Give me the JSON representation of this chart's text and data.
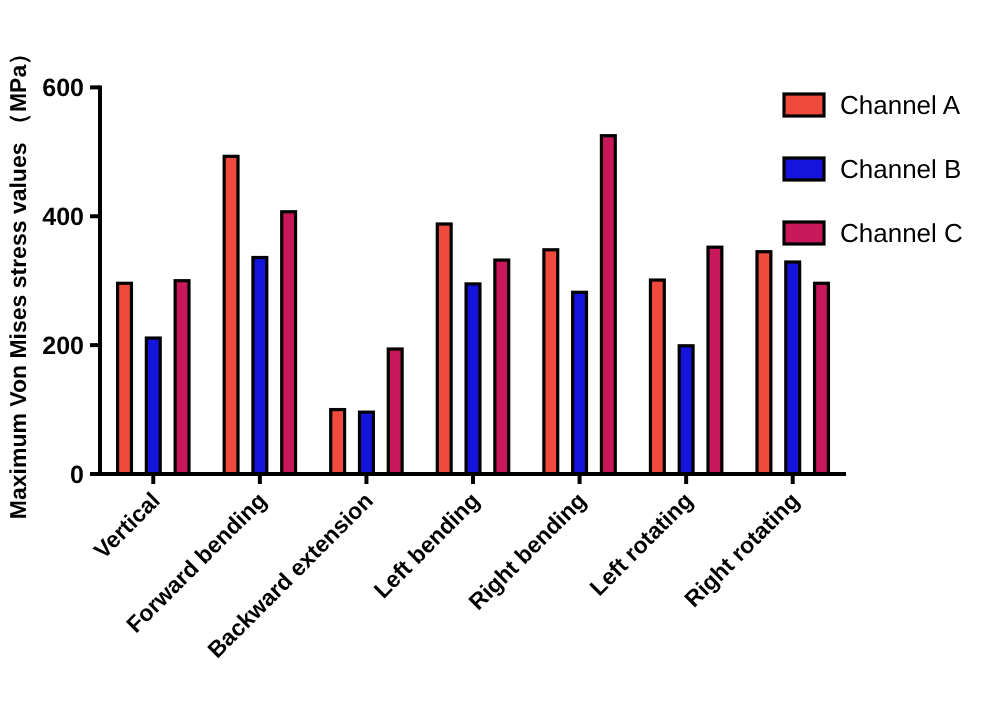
{
  "chart_data": {
    "type": "bar",
    "ylabel": "Maximum Von Mises stress values （MPa）",
    "categories": [
      "Vertical",
      "Forward bending",
      "Backward extension",
      "Left bending",
      "Right bending",
      "Left rotating",
      "Right rotating"
    ],
    "series": [
      {
        "name": "Channel A",
        "color": "#f04a3c",
        "values": [
          296,
          493,
          100,
          388,
          348,
          301,
          345
        ]
      },
      {
        "name": "Channel B",
        "color": "#1414dc",
        "values": [
          211,
          336,
          96,
          295,
          282,
          199,
          329
        ]
      },
      {
        "name": "Channel C",
        "color": "#c8185a",
        "values": [
          300,
          407,
          194,
          332,
          525,
          352,
          296
        ]
      }
    ],
    "ylim": [
      0,
      600
    ],
    "yticks": [
      0,
      200,
      400,
      600
    ],
    "grid": false,
    "legend": "top right"
  }
}
